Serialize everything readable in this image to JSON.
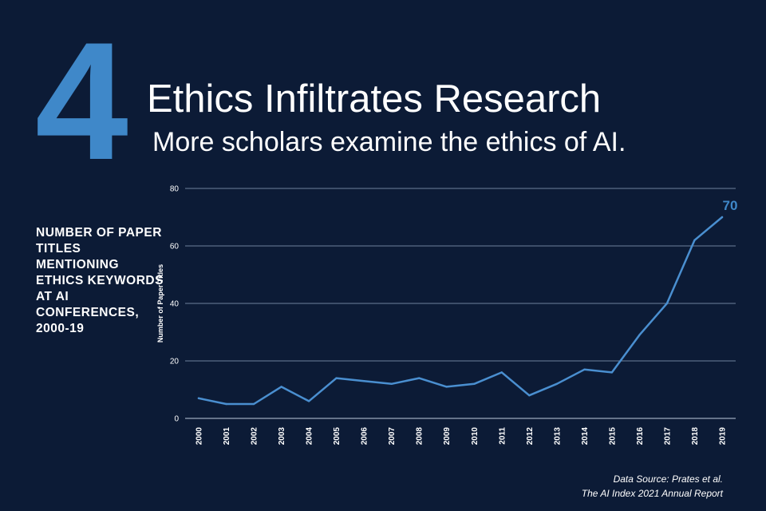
{
  "header": {
    "number": "4",
    "title": "Ethics Infiltrates Research",
    "subtitle": "More scholars examine the ethics of AI."
  },
  "side_label": "NUMBER OF PAPER TITLES MENTIONING ETHICS KEYWORDS AT AI CONFERENCES, 2000-19",
  "source": {
    "line1": "Data Source: Prates et al.",
    "line2": "The AI Index 2021 Annual Report"
  },
  "colors": {
    "background": "#0c1b36",
    "accent": "#3f88c9",
    "line": "#4a8fd0",
    "grid": "#8fa3bf"
  },
  "chart_data": {
    "type": "line",
    "title": "",
    "xlabel": "",
    "ylabel": "Number of Paper Titles",
    "ylim": [
      0,
      80
    ],
    "yticks": [
      0,
      20,
      40,
      60,
      80
    ],
    "grid": true,
    "x": [
      "2000",
      "2001",
      "2002",
      "2003",
      "2004",
      "2005",
      "2006",
      "2007",
      "2008",
      "2009",
      "2010",
      "2011",
      "2012",
      "2013",
      "2014",
      "2015",
      "2016",
      "2017",
      "2018",
      "2019"
    ],
    "series": [
      {
        "values": [
          7,
          5,
          5,
          11,
          6,
          14,
          13,
          12,
          14,
          11,
          12,
          16,
          8,
          12,
          17,
          16,
          29,
          40,
          62,
          70
        ]
      }
    ],
    "annotations": [
      {
        "x": "2019",
        "text": "70"
      }
    ]
  }
}
